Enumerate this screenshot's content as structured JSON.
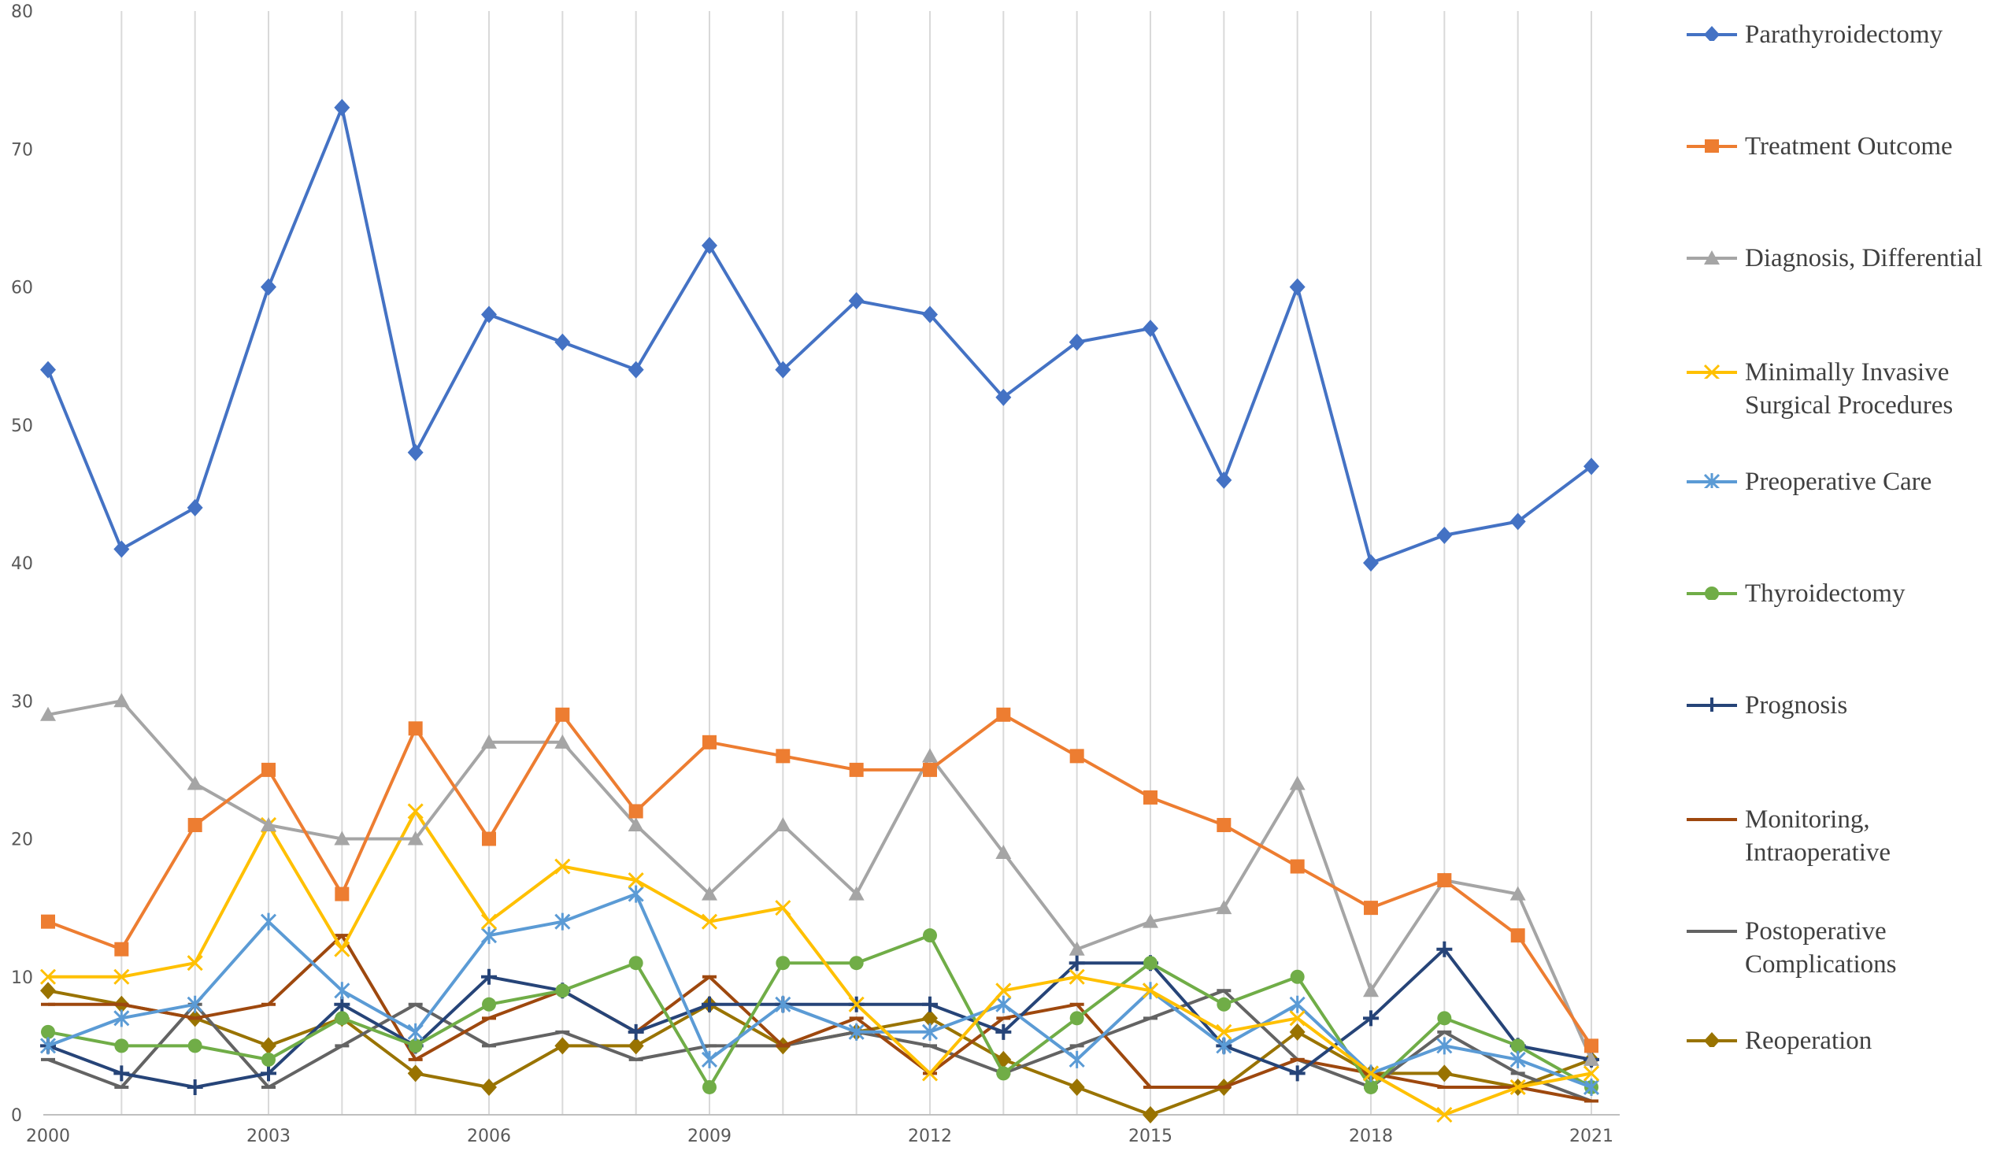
{
  "chart_data": {
    "type": "line",
    "title": "",
    "xlabel": "",
    "ylabel": "",
    "x": [
      2000,
      2001,
      2002,
      2003,
      2004,
      2005,
      2006,
      2007,
      2008,
      2009,
      2010,
      2011,
      2012,
      2013,
      2014,
      2015,
      2016,
      2017,
      2018,
      2019,
      2020,
      2021
    ],
    "x_tick_labels": [
      "2000",
      "2003",
      "2006",
      "2009",
      "2012",
      "2015",
      "2018",
      "2021"
    ],
    "y_tick_labels": [
      "0",
      "10",
      "20",
      "30",
      "40",
      "50",
      "60",
      "70",
      "80"
    ],
    "ylim": [
      0,
      80
    ],
    "grid": "vertical",
    "legend_position": "right",
    "series": [
      {
        "name": "Parathyroidectomy",
        "color": "#4472C4",
        "marker": "diamond",
        "values": [
          54,
          41,
          44,
          60,
          73,
          48,
          58,
          56,
          54,
          63,
          54,
          59,
          58,
          52,
          56,
          57,
          46,
          60,
          40,
          42,
          43,
          47
        ]
      },
      {
        "name": "Treatment Outcome",
        "color": "#ED7D31",
        "marker": "square",
        "values": [
          14,
          12,
          21,
          25,
          16,
          28,
          20,
          29,
          22,
          27,
          26,
          25,
          25,
          29,
          26,
          23,
          21,
          18,
          15,
          17,
          13,
          5
        ]
      },
      {
        "name": "Diagnosis, Differential",
        "color": "#A5A5A5",
        "marker": "triangle",
        "values": [
          29,
          30,
          24,
          21,
          20,
          20,
          27,
          27,
          21,
          16,
          21,
          16,
          26,
          19,
          12,
          14,
          15,
          24,
          9,
          17,
          16,
          4
        ]
      },
      {
        "name": "Minimally Invasive Surgical Procedures",
        "label_lines": [
          "Minimally Invasive",
          "Surgical Procedures"
        ],
        "color": "#FFC000",
        "marker": "x",
        "values": [
          10,
          10,
          11,
          21,
          12,
          22,
          14,
          18,
          17,
          14,
          15,
          8,
          3,
          9,
          10,
          9,
          6,
          7,
          3,
          0,
          2,
          3
        ]
      },
      {
        "name": "Preoperative Care",
        "color": "#5B9BD5",
        "marker": "star",
        "values": [
          5,
          7,
          8,
          14,
          9,
          6,
          13,
          14,
          16,
          4,
          8,
          6,
          6,
          8,
          4,
          9,
          5,
          8,
          3,
          5,
          4,
          2
        ]
      },
      {
        "name": "Thyroidectomy",
        "color": "#70AD47",
        "marker": "circle",
        "values": [
          6,
          5,
          5,
          4,
          7,
          5,
          8,
          9,
          11,
          2,
          11,
          11,
          13,
          3,
          7,
          11,
          8,
          10,
          2,
          7,
          5,
          2
        ]
      },
      {
        "name": "Prognosis",
        "color": "#264478",
        "marker": "plus",
        "values": [
          5,
          3,
          2,
          3,
          8,
          5,
          10,
          9,
          6,
          8,
          8,
          8,
          8,
          6,
          11,
          11,
          5,
          3,
          7,
          12,
          5,
          4
        ]
      },
      {
        "name": "Monitoring, Intraoperative",
        "label_lines": [
          "Monitoring,",
          "Intraoperative"
        ],
        "color": "#9E480E",
        "marker": "dash",
        "values": [
          8,
          8,
          7,
          8,
          13,
          4,
          7,
          9,
          6,
          10,
          5,
          7,
          3,
          7,
          8,
          2,
          2,
          4,
          3,
          2,
          2,
          1
        ]
      },
      {
        "name": "Postoperative Complications",
        "label_lines": [
          "Postoperative",
          "Complications"
        ],
        "color": "#636363",
        "marker": "dash",
        "values": [
          4,
          2,
          8,
          2,
          5,
          8,
          5,
          6,
          4,
          5,
          5,
          6,
          5,
          3,
          5,
          7,
          9,
          4,
          2,
          6,
          3,
          1
        ]
      },
      {
        "name": "Reoperation",
        "color": "#997300",
        "marker": "diamond",
        "values": [
          9,
          8,
          7,
          5,
          7,
          3,
          2,
          5,
          5,
          8,
          5,
          6,
          7,
          4,
          2,
          0,
          2,
          6,
          3,
          3,
          2,
          4
        ]
      }
    ]
  }
}
